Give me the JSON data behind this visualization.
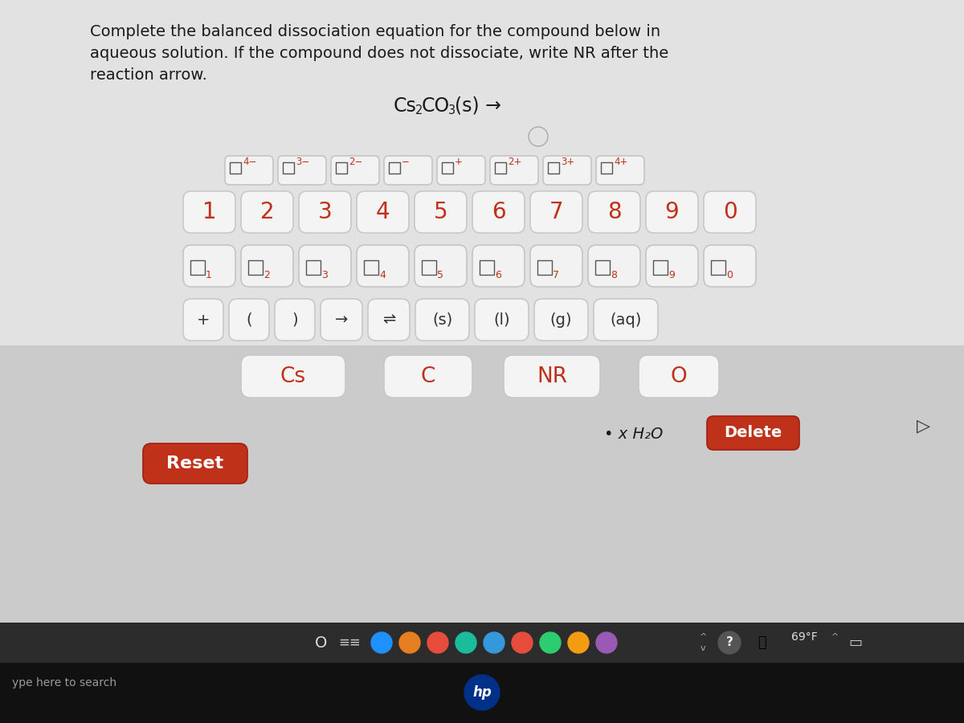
{
  "bg_light": "#e0e0e0",
  "bg_kbd": "#d0d0d0",
  "bg_dark": "#1a1a1a",
  "btn_bg": "#f4f4f4",
  "btn_border": "#c8c8c8",
  "btn_shadow": "#b0b0b0",
  "red": "#c0311a",
  "dark_text": "#1a1a1a",
  "gray_text": "#666666",
  "title_line1": "Complete the balanced dissociation equation for the compound below in",
  "title_line2": "aqueous solution. If the compound does not dissociate, write NR after the",
  "title_line3": "reaction arrow.",
  "row1_charges": [
    "4−",
    "3−",
    "2−",
    "−",
    "+",
    "2+",
    "3+",
    "4+"
  ],
  "row2_nums": [
    "1",
    "2",
    "3",
    "4",
    "5",
    "6",
    "7",
    "8",
    "9",
    "0"
  ],
  "row3_subs": [
    "1",
    "2",
    "3",
    "4",
    "5",
    "6",
    "7",
    "8",
    "9",
    "0"
  ],
  "row4_syms": [
    "+",
    "(",
    ")",
    "→",
    "⇌",
    "(s)",
    "(l)",
    "(g)",
    "(aq)"
  ],
  "row5_elems": [
    "Cs",
    "C",
    "NR",
    "O"
  ],
  "xh2o_text": "• x H₂O",
  "delete_text": "Delete",
  "reset_text": "Reset",
  "search_text": "ype here to search",
  "temp_text": "69°F"
}
